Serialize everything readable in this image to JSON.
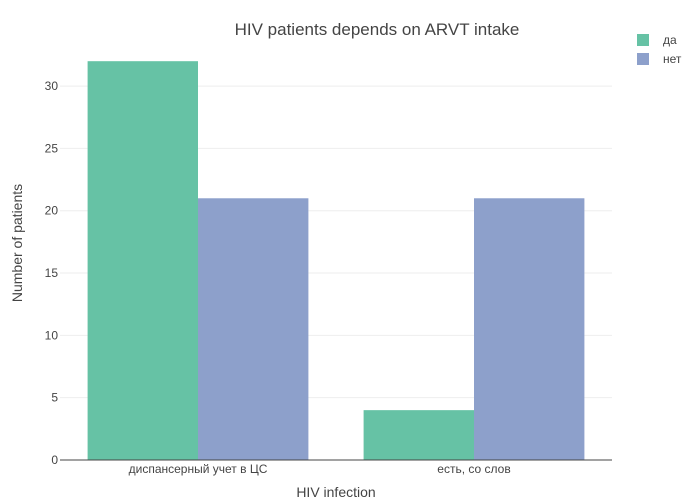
{
  "chart_data": {
    "type": "bar",
    "title": "HIV patients depends on ARVT intake",
    "xlabel": "HIV infection",
    "ylabel": "Number of patients",
    "categories": [
      "диспансерный учет в ЦС",
      "есть, со слов"
    ],
    "series": [
      {
        "name": "да",
        "values": [
          32,
          4
        ],
        "color": "#66c2a5"
      },
      {
        "name": "нет",
        "values": [
          21,
          21
        ],
        "color": "#8da0cb"
      }
    ],
    "ylim": [
      0,
      33.7
    ],
    "yticks": [
      0,
      5,
      10,
      15,
      20,
      25,
      30
    ],
    "grid": true,
    "legend_position": "top-right"
  }
}
